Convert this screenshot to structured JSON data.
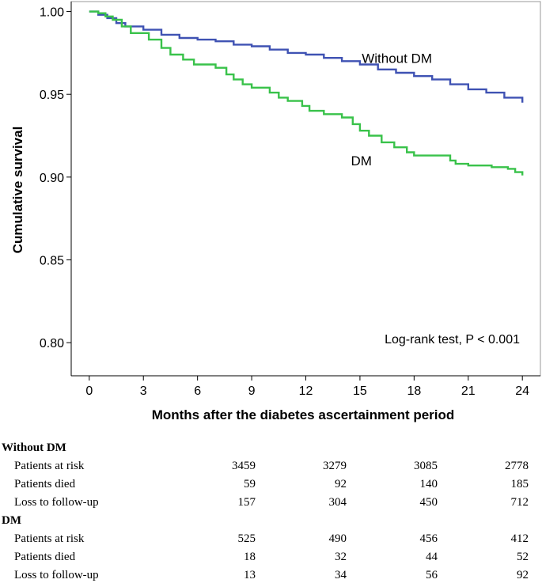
{
  "colors": {
    "without_dm": "#3f52b3",
    "dm": "#39c24a",
    "axis": "#000000",
    "frame": "#999999"
  },
  "chart_data": {
    "type": "line",
    "title": "",
    "xlabel": "Months after the diabetes ascertainment period",
    "ylabel": "Cumulative survival",
    "xlim": [
      -1,
      25
    ],
    "ylim": [
      0.78,
      1.006
    ],
    "x_ticks": [
      0,
      3,
      6,
      9,
      12,
      15,
      18,
      21,
      24
    ],
    "y_ticks": [
      0.8,
      0.85,
      0.9,
      0.95,
      1.0
    ],
    "x_tick_labels": [
      "0",
      "3",
      "6",
      "9",
      "12",
      "15",
      "18",
      "21",
      "24"
    ],
    "y_tick_labels": [
      "0.80",
      "0.85",
      "0.90",
      "0.95",
      "1.00"
    ],
    "annotation": "Log-rank test, P < 0.001",
    "series": [
      {
        "name": "Without DM",
        "x": [
          0,
          0.5,
          1,
          1.5,
          2,
          3,
          4,
          5,
          6,
          7,
          8,
          9,
          10,
          11,
          12,
          13,
          14,
          15,
          16,
          17,
          18,
          19,
          20,
          21,
          22,
          23,
          24
        ],
        "y": [
          1.0,
          0.998,
          0.996,
          0.993,
          0.991,
          0.989,
          0.986,
          0.984,
          0.983,
          0.982,
          0.98,
          0.979,
          0.977,
          0.975,
          0.974,
          0.972,
          0.97,
          0.968,
          0.965,
          0.963,
          0.961,
          0.959,
          0.956,
          0.953,
          0.951,
          0.948,
          0.945
        ]
      },
      {
        "name": "DM",
        "x": [
          0,
          0.5,
          0.9,
          1.3,
          1.8,
          2.3,
          3.3,
          4.0,
          4.5,
          5.2,
          5.8,
          7.0,
          7.6,
          8.0,
          8.5,
          9.0,
          10.0,
          10.5,
          11.0,
          11.8,
          12.2,
          13.0,
          14.0,
          14.6,
          15.0,
          15.5,
          16.2,
          16.9,
          17.6,
          18.0,
          20.0,
          20.3,
          21.0,
          22.3,
          23.2,
          23.6,
          24.0
        ],
        "y": [
          1.0,
          0.999,
          0.997,
          0.995,
          0.991,
          0.987,
          0.983,
          0.978,
          0.974,
          0.971,
          0.968,
          0.966,
          0.962,
          0.959,
          0.956,
          0.954,
          0.951,
          0.948,
          0.946,
          0.943,
          0.94,
          0.938,
          0.936,
          0.932,
          0.928,
          0.925,
          0.921,
          0.918,
          0.915,
          0.913,
          0.91,
          0.908,
          0.907,
          0.906,
          0.905,
          0.903,
          0.901
        ]
      }
    ],
    "series_labels": [
      {
        "text": "Without DM",
        "x": 15.1,
        "y": 0.969
      },
      {
        "text": "DM",
        "x": 14.5,
        "y": 0.907
      }
    ]
  },
  "risk_table": {
    "groups": [
      {
        "name": "Without DM",
        "rows": [
          {
            "label": "Patients at risk",
            "values": [
              "3459",
              "3279",
              "3085",
              "2778"
            ]
          },
          {
            "label": "Patients died",
            "values": [
              "59",
              "92",
              "140",
              "185"
            ]
          },
          {
            "label": "Loss to follow-up",
            "values": [
              "157",
              "304",
              "450",
              "712"
            ]
          }
        ]
      },
      {
        "name": "DM",
        "rows": [
          {
            "label": "Patients at risk",
            "values": [
              "525",
              "490",
              "456",
              "412"
            ]
          },
          {
            "label": "Patients died",
            "values": [
              "18",
              "32",
              "44",
              "52"
            ]
          },
          {
            "label": "Loss to follow-up",
            "values": [
              "13",
              "34",
              "56",
              "92"
            ]
          }
        ]
      }
    ]
  }
}
